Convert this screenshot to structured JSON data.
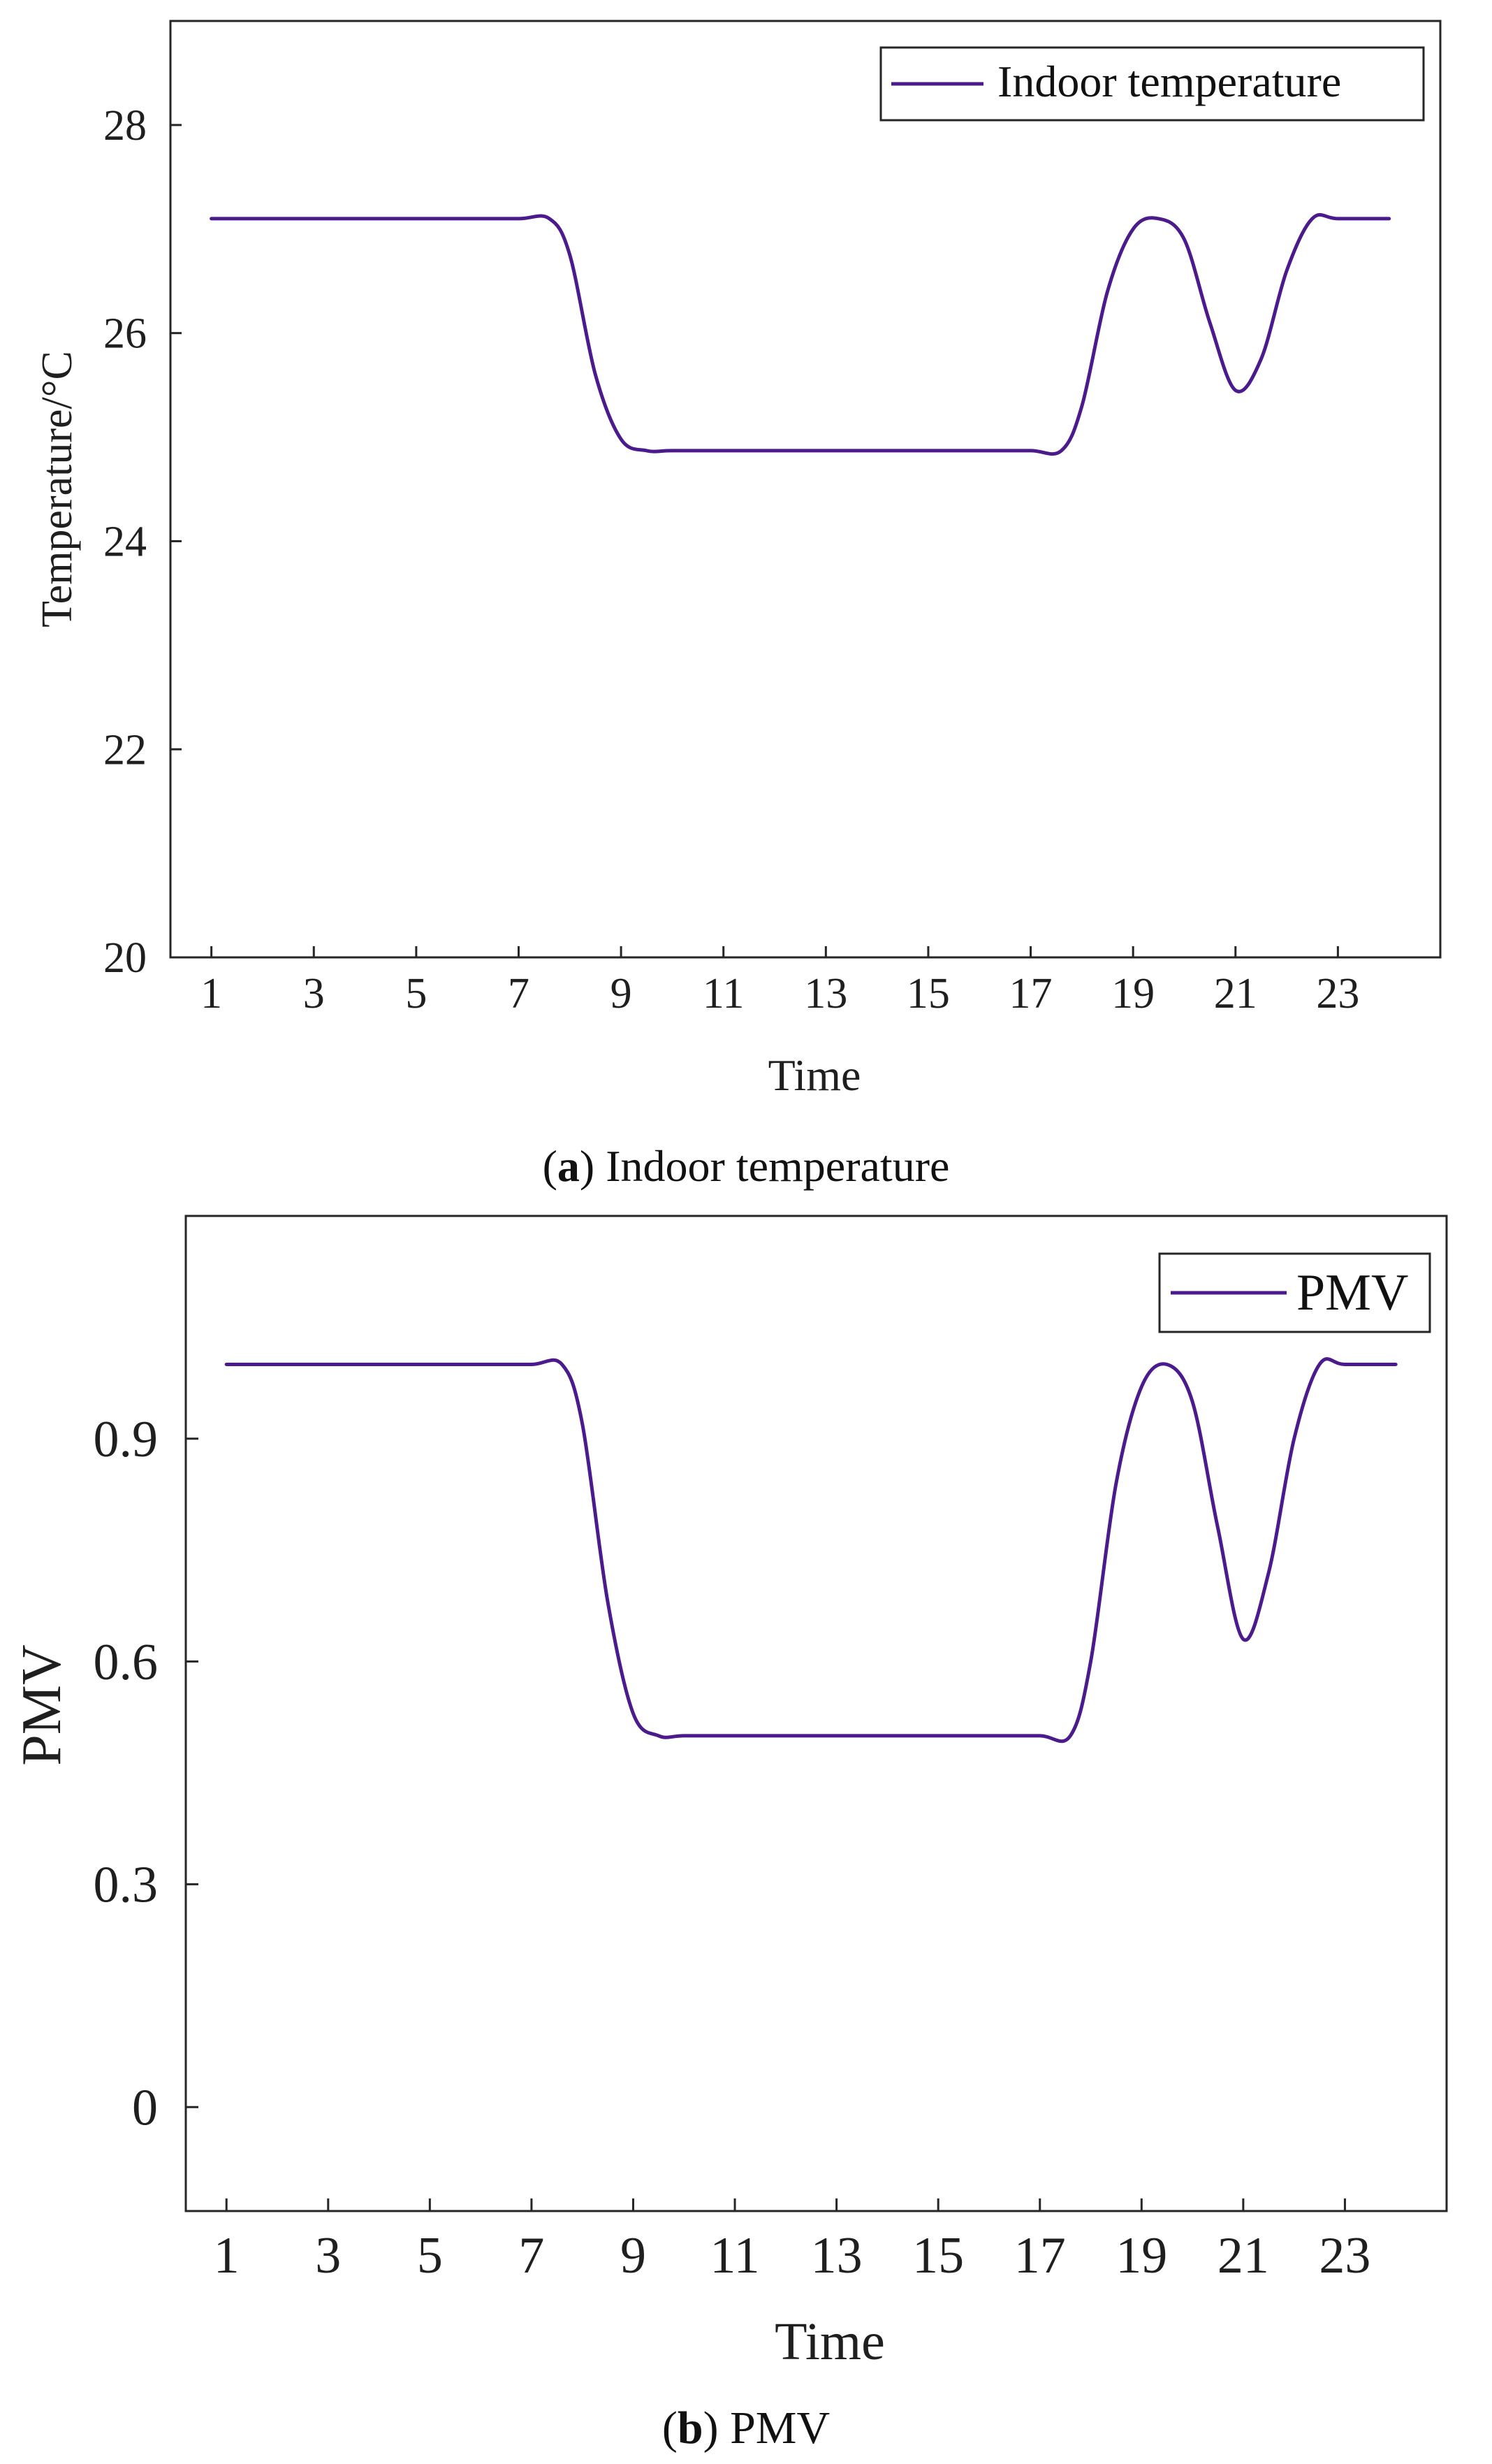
{
  "chart_data": [
    {
      "type": "line",
      "caption_letter": "a",
      "caption_text": " Indoor temperature",
      "xlabel": "Time",
      "ylabel": "Temperature/°C",
      "xlim": [
        0.2,
        25
      ],
      "ylim": [
        20,
        29
      ],
      "xticks": [
        1,
        3,
        5,
        7,
        9,
        11,
        13,
        15,
        17,
        19,
        21,
        23
      ],
      "yticks": [
        20,
        22,
        24,
        26,
        28
      ],
      "ytick_labels": [
        "20",
        "22",
        "24",
        "26",
        "28"
      ],
      "grid": false,
      "legend_position": "top-right",
      "color": "#4b1a8c",
      "series": [
        {
          "name": "Indoor temperature",
          "x": [
            1,
            2,
            3,
            4,
            5,
            6,
            7,
            7.6,
            8,
            8.5,
            9,
            9.5,
            10,
            11,
            12,
            13,
            14,
            15,
            16,
            17,
            17.6,
            18,
            18.5,
            19,
            19.5,
            20,
            20.5,
            21,
            21.5,
            22,
            22.5,
            23,
            24
          ],
          "y": [
            27.1,
            27.1,
            27.1,
            27.1,
            27.1,
            27.1,
            27.1,
            27.1,
            26.75,
            25.6,
            24.98,
            24.87,
            24.87,
            24.87,
            24.87,
            24.87,
            24.87,
            24.87,
            24.87,
            24.87,
            24.87,
            25.3,
            26.4,
            27.0,
            27.1,
            26.9,
            26.1,
            25.45,
            25.75,
            26.6,
            27.1,
            27.1,
            27.1
          ]
        }
      ]
    },
    {
      "type": "line",
      "caption_letter": "b",
      "caption_text": " PMV",
      "xlabel": "Time",
      "ylabel": "PMV",
      "xlim": [
        0.2,
        25
      ],
      "ylim": [
        -0.14,
        1.2
      ],
      "xticks": [
        1,
        3,
        5,
        7,
        9,
        11,
        13,
        15,
        17,
        19,
        21,
        23
      ],
      "yticks": [
        0,
        0.3,
        0.6,
        0.9
      ],
      "ytick_labels": [
        "0",
        "0.3",
        "0.6",
        "0.9"
      ],
      "grid": false,
      "legend_position": "top-right",
      "color": "#4b1a8c",
      "series": [
        {
          "name": "PMV",
          "x": [
            1,
            2,
            3,
            4,
            5,
            6,
            7,
            7.6,
            8,
            8.5,
            9,
            9.5,
            10,
            11,
            12,
            13,
            14,
            15,
            16,
            17,
            17.6,
            18,
            18.5,
            19,
            19.5,
            20,
            20.5,
            21,
            21.5,
            22,
            22.5,
            23,
            24
          ],
          "y": [
            1.0,
            1.0,
            1.0,
            1.0,
            1.0,
            1.0,
            1.0,
            1.0,
            0.92,
            0.68,
            0.53,
            0.5,
            0.5,
            0.5,
            0.5,
            0.5,
            0.5,
            0.5,
            0.5,
            0.5,
            0.5,
            0.6,
            0.84,
            0.97,
            1.0,
            0.95,
            0.78,
            0.63,
            0.72,
            0.9,
            1.0,
            1.0,
            1.0
          ]
        }
      ]
    }
  ]
}
